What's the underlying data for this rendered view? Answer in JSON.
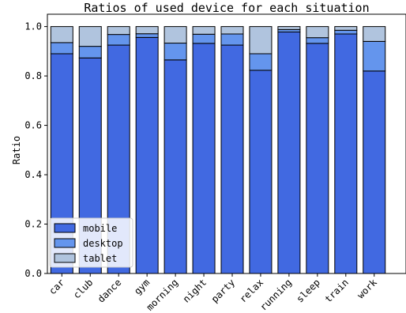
{
  "chart_data": {
    "type": "bar",
    "stacked": true,
    "title": "Ratios of used device for each situation",
    "xlabel": "",
    "ylabel": "Ratio",
    "ylim": [
      0,
      1.05
    ],
    "yticks": [
      "0.0",
      "0.2",
      "0.4",
      "0.6",
      "0.8",
      "1.0"
    ],
    "categories": [
      "car",
      "club",
      "dance",
      "gym",
      "morning",
      "night",
      "party",
      "relax",
      "running",
      "sleep",
      "train",
      "work"
    ],
    "series": [
      {
        "name": "mobile",
        "color": "#4169e1",
        "values": [
          0.89,
          0.873,
          0.925,
          0.956,
          0.865,
          0.932,
          0.925,
          0.823,
          0.978,
          0.932,
          0.97,
          0.82
        ]
      },
      {
        "name": "desktop",
        "color": "#6495ed",
        "values": [
          0.045,
          0.047,
          0.043,
          0.015,
          0.068,
          0.037,
          0.045,
          0.067,
          0.01,
          0.023,
          0.015,
          0.12
        ]
      },
      {
        "name": "tablet",
        "color": "#b0c4de",
        "values": [
          0.065,
          0.08,
          0.032,
          0.029,
          0.067,
          0.031,
          0.03,
          0.11,
          0.012,
          0.045,
          0.015,
          0.06
        ]
      }
    ],
    "legend_position": "bottom-left",
    "grid": false
  }
}
